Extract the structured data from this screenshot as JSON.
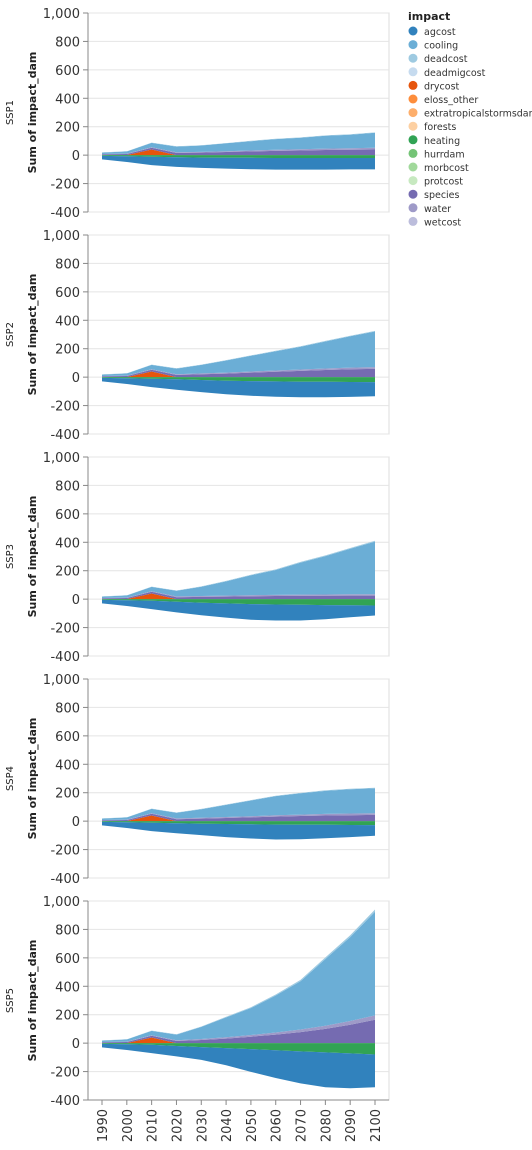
{
  "chart_data": {
    "type": "area",
    "stacked": true,
    "x": [
      1990,
      2000,
      2010,
      2020,
      2030,
      2040,
      2050,
      2060,
      2070,
      2080,
      2090,
      2100
    ],
    "ylabel": "Sum of impact_dam",
    "ylim": [
      -400,
      1000
    ],
    "y_ticks": [
      "1,000",
      "800",
      "600",
      "400",
      "200",
      "0",
      "-200",
      "-400"
    ],
    "grid": true,
    "legend": {
      "title": "impact",
      "placement": "top-right",
      "entries": [
        {
          "name": "agcost",
          "color": "#3182bd"
        },
        {
          "name": "cooling",
          "color": "#6baed6"
        },
        {
          "name": "deadcost",
          "color": "#9ecae1"
        },
        {
          "name": "deadmigcost",
          "color": "#c6dbef"
        },
        {
          "name": "drycost",
          "color": "#e6550d"
        },
        {
          "name": "eloss_other",
          "color": "#fd8d3c"
        },
        {
          "name": "extratropicalstormsdam",
          "color": "#fdae6b"
        },
        {
          "name": "forests",
          "color": "#fdd0a2"
        },
        {
          "name": "heating",
          "color": "#31a354"
        },
        {
          "name": "hurrdam",
          "color": "#74c476"
        },
        {
          "name": "morbcost",
          "color": "#a1d99b"
        },
        {
          "name": "protcost",
          "color": "#c7e9c0"
        },
        {
          "name": "species",
          "color": "#756bb1"
        },
        {
          "name": "water",
          "color": "#9e9ac8"
        },
        {
          "name": "wetcost",
          "color": "#bcbddc"
        }
      ]
    },
    "facets": [
      {
        "label": "SSP1",
        "positive": {
          "drycost": [
            0,
            0,
            40,
            0,
            0,
            0,
            0,
            0,
            0,
            0,
            0,
            0
          ],
          "species": [
            6,
            8,
            12,
            15,
            18,
            22,
            26,
            30,
            33,
            36,
            38,
            40
          ],
          "water": [
            2,
            3,
            4,
            5,
            5,
            6,
            7,
            8,
            9,
            10,
            11,
            12
          ],
          "cooling": [
            10,
            15,
            30,
            40,
            45,
            55,
            65,
            75,
            80,
            90,
            95,
            105
          ],
          "deadcost": [
            1,
            1,
            2,
            2,
            2,
            2,
            3,
            3,
            3,
            3,
            3,
            3
          ]
        },
        "negative": {
          "heating": [
            -5,
            -8,
            -12,
            -15,
            -17,
            -18,
            -19,
            -20,
            -20,
            -20,
            -20,
            -20
          ],
          "agcost": [
            -25,
            -40,
            -58,
            -68,
            -73,
            -77,
            -80,
            -82,
            -82,
            -82,
            -80,
            -80
          ]
        }
      },
      {
        "label": "SSP2",
        "positive": {
          "drycost": [
            0,
            0,
            40,
            0,
            0,
            0,
            0,
            0,
            0,
            0,
            0,
            0
          ],
          "species": [
            6,
            8,
            12,
            15,
            20,
            25,
            32,
            38,
            44,
            50,
            55,
            58
          ],
          "water": [
            2,
            3,
            4,
            5,
            6,
            7,
            8,
            9,
            10,
            11,
            12,
            13
          ],
          "cooling": [
            10,
            15,
            30,
            40,
            60,
            85,
            110,
            135,
            160,
            190,
            220,
            250
          ],
          "deadcost": [
            1,
            1,
            2,
            2,
            2,
            3,
            3,
            3,
            4,
            4,
            4,
            4
          ]
        },
        "negative": {
          "heating": [
            -5,
            -8,
            -12,
            -15,
            -20,
            -25,
            -28,
            -30,
            -32,
            -33,
            -34,
            -35
          ],
          "agcost": [
            -25,
            -40,
            -58,
            -73,
            -85,
            -95,
            -103,
            -108,
            -110,
            -108,
            -105,
            -100
          ]
        }
      },
      {
        "label": "SSP3",
        "positive": {
          "drycost": [
            0,
            0,
            40,
            0,
            0,
            0,
            0,
            0,
            0,
            0,
            0,
            0
          ],
          "species": [
            6,
            8,
            12,
            14,
            16,
            18,
            20,
            22,
            23,
            24,
            25,
            25
          ],
          "water": [
            2,
            3,
            4,
            5,
            6,
            7,
            8,
            8,
            9,
            9,
            10,
            10
          ],
          "cooling": [
            10,
            15,
            30,
            40,
            65,
            100,
            140,
            175,
            225,
            270,
            320,
            370
          ],
          "deadcost": [
            1,
            1,
            2,
            2,
            3,
            3,
            4,
            4,
            5,
            5,
            5,
            6
          ]
        },
        "negative": {
          "heating": [
            -5,
            -8,
            -12,
            -18,
            -25,
            -30,
            -35,
            -38,
            -40,
            -42,
            -43,
            -45
          ],
          "agcost": [
            -25,
            -40,
            -58,
            -75,
            -88,
            -100,
            -110,
            -112,
            -110,
            -100,
            -85,
            -70
          ]
        }
      },
      {
        "label": "SSP4",
        "positive": {
          "drycost": [
            0,
            0,
            40,
            0,
            0,
            0,
            0,
            0,
            0,
            0,
            0,
            0
          ],
          "species": [
            6,
            8,
            12,
            14,
            18,
            22,
            27,
            32,
            36,
            40,
            42,
            44
          ],
          "water": [
            2,
            3,
            4,
            5,
            6,
            7,
            8,
            9,
            10,
            11,
            12,
            12
          ],
          "cooling": [
            10,
            15,
            30,
            40,
            60,
            85,
            110,
            135,
            150,
            162,
            170,
            175
          ],
          "deadcost": [
            1,
            1,
            2,
            2,
            2,
            3,
            3,
            3,
            3,
            4,
            4,
            4
          ]
        },
        "negative": {
          "heating": [
            -5,
            -8,
            -12,
            -15,
            -18,
            -20,
            -22,
            -24,
            -25,
            -26,
            -27,
            -28
          ],
          "agcost": [
            -25,
            -40,
            -58,
            -70,
            -80,
            -92,
            -100,
            -105,
            -103,
            -95,
            -85,
            -75
          ]
        }
      },
      {
        "label": "SSP5",
        "positive": {
          "drycost": [
            0,
            0,
            40,
            0,
            0,
            0,
            0,
            0,
            0,
            0,
            0,
            0
          ],
          "species": [
            6,
            8,
            12,
            15,
            22,
            32,
            45,
            60,
            78,
            100,
            130,
            165
          ],
          "water": [
            2,
            3,
            4,
            5,
            7,
            9,
            12,
            15,
            18,
            22,
            26,
            30
          ],
          "cooling": [
            10,
            15,
            30,
            40,
            85,
            140,
            190,
            260,
            340,
            470,
            590,
            730
          ],
          "deadcost": [
            1,
            1,
            2,
            2,
            3,
            4,
            6,
            7,
            9,
            11,
            13,
            15
          ]
        },
        "negative": {
          "heating": [
            -5,
            -8,
            -12,
            -20,
            -28,
            -35,
            -42,
            -50,
            -58,
            -65,
            -72,
            -80
          ],
          "agcost": [
            -25,
            -40,
            -58,
            -73,
            -90,
            -120,
            -160,
            -195,
            -225,
            -245,
            -245,
            -230
          ]
        }
      }
    ]
  }
}
